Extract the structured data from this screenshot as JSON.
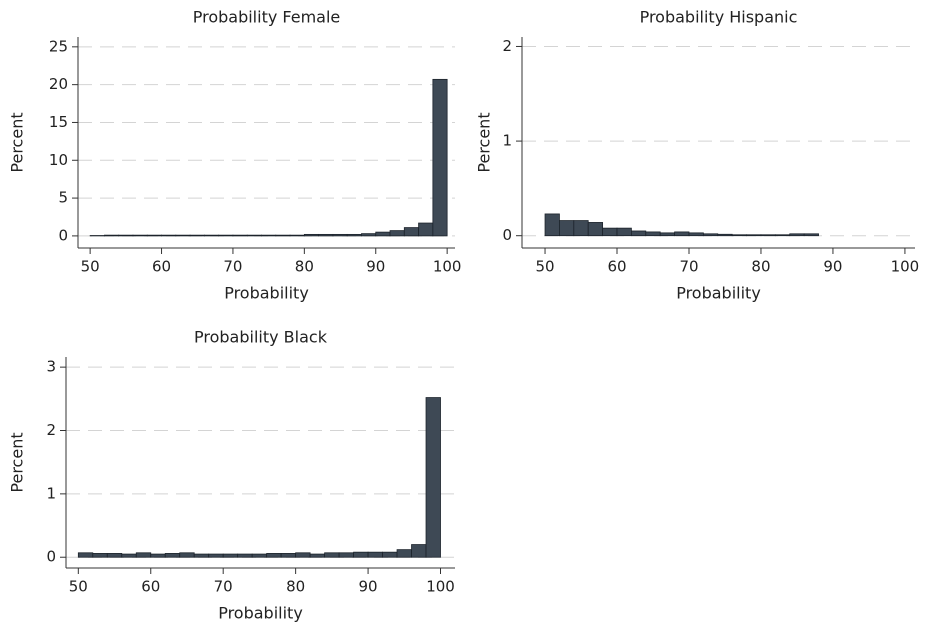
{
  "chart_data": [
    {
      "type": "histogram",
      "title": "Probability Female",
      "xlabel": "Probability",
      "ylabel": "Percent",
      "bins": [
        50,
        52,
        54,
        56,
        58,
        60,
        62,
        64,
        66,
        68,
        70,
        72,
        74,
        76,
        78,
        80,
        82,
        84,
        86,
        88,
        90,
        92,
        94,
        96,
        98,
        100
      ],
      "values": [
        0.05,
        0.1,
        0.1,
        0.1,
        0.1,
        0.1,
        0.1,
        0.1,
        0.1,
        0.1,
        0.1,
        0.1,
        0.1,
        0.1,
        0.1,
        0.2,
        0.2,
        0.2,
        0.2,
        0.3,
        0.5,
        0.7,
        1.1,
        1.7,
        20.7
      ],
      "color": "#3e4955",
      "xlim": [
        48.3,
        101.1
      ],
      "ylim": [
        -1.6,
        26.3
      ],
      "xticks": [
        50,
        60,
        70,
        80,
        90,
        100
      ],
      "yticks": [
        0,
        5,
        10,
        15,
        20,
        25
      ],
      "grid": true
    },
    {
      "type": "histogram",
      "title": "Probability Hispanic",
      "xlabel": "Probability",
      "ylabel": "Percent",
      "bins": [
        50,
        52,
        54,
        56,
        58,
        60,
        62,
        64,
        66,
        68,
        70,
        72,
        74,
        76,
        78,
        80,
        82,
        84,
        86,
        88
      ],
      "values": [
        0.23,
        0.16,
        0.16,
        0.14,
        0.08,
        0.08,
        0.05,
        0.04,
        0.03,
        0.04,
        0.03,
        0.02,
        0.015,
        0.01,
        0.01,
        0.01,
        0.01,
        0.02,
        0.02
      ],
      "color": "#3e4955",
      "xlim": [
        46.8,
        101.4
      ],
      "ylim": [
        -0.13,
        2.1
      ],
      "xticks": [
        50,
        60,
        70,
        80,
        90,
        100
      ],
      "yticks": [
        0,
        1,
        2
      ],
      "grid": true
    },
    {
      "type": "histogram",
      "title": "Probability Black",
      "xlabel": "Probability",
      "ylabel": "Percent",
      "bins": [
        50,
        52,
        54,
        56,
        58,
        60,
        62,
        64,
        66,
        68,
        70,
        72,
        74,
        76,
        78,
        80,
        82,
        84,
        86,
        88,
        90,
        92,
        94,
        96,
        98,
        100
      ],
      "values": [
        0.07,
        0.06,
        0.06,
        0.05,
        0.07,
        0.05,
        0.06,
        0.07,
        0.05,
        0.05,
        0.05,
        0.05,
        0.05,
        0.06,
        0.06,
        0.07,
        0.05,
        0.07,
        0.07,
        0.08,
        0.08,
        0.08,
        0.12,
        0.2,
        2.52
      ],
      "color": "#3e4955",
      "xlim": [
        48.3,
        102
      ],
      "ylim": [
        -0.17,
        3.16
      ],
      "xticks": [
        50,
        60,
        70,
        80,
        90,
        100
      ],
      "yticks": [
        0,
        1,
        2,
        3
      ],
      "grid": true
    }
  ]
}
